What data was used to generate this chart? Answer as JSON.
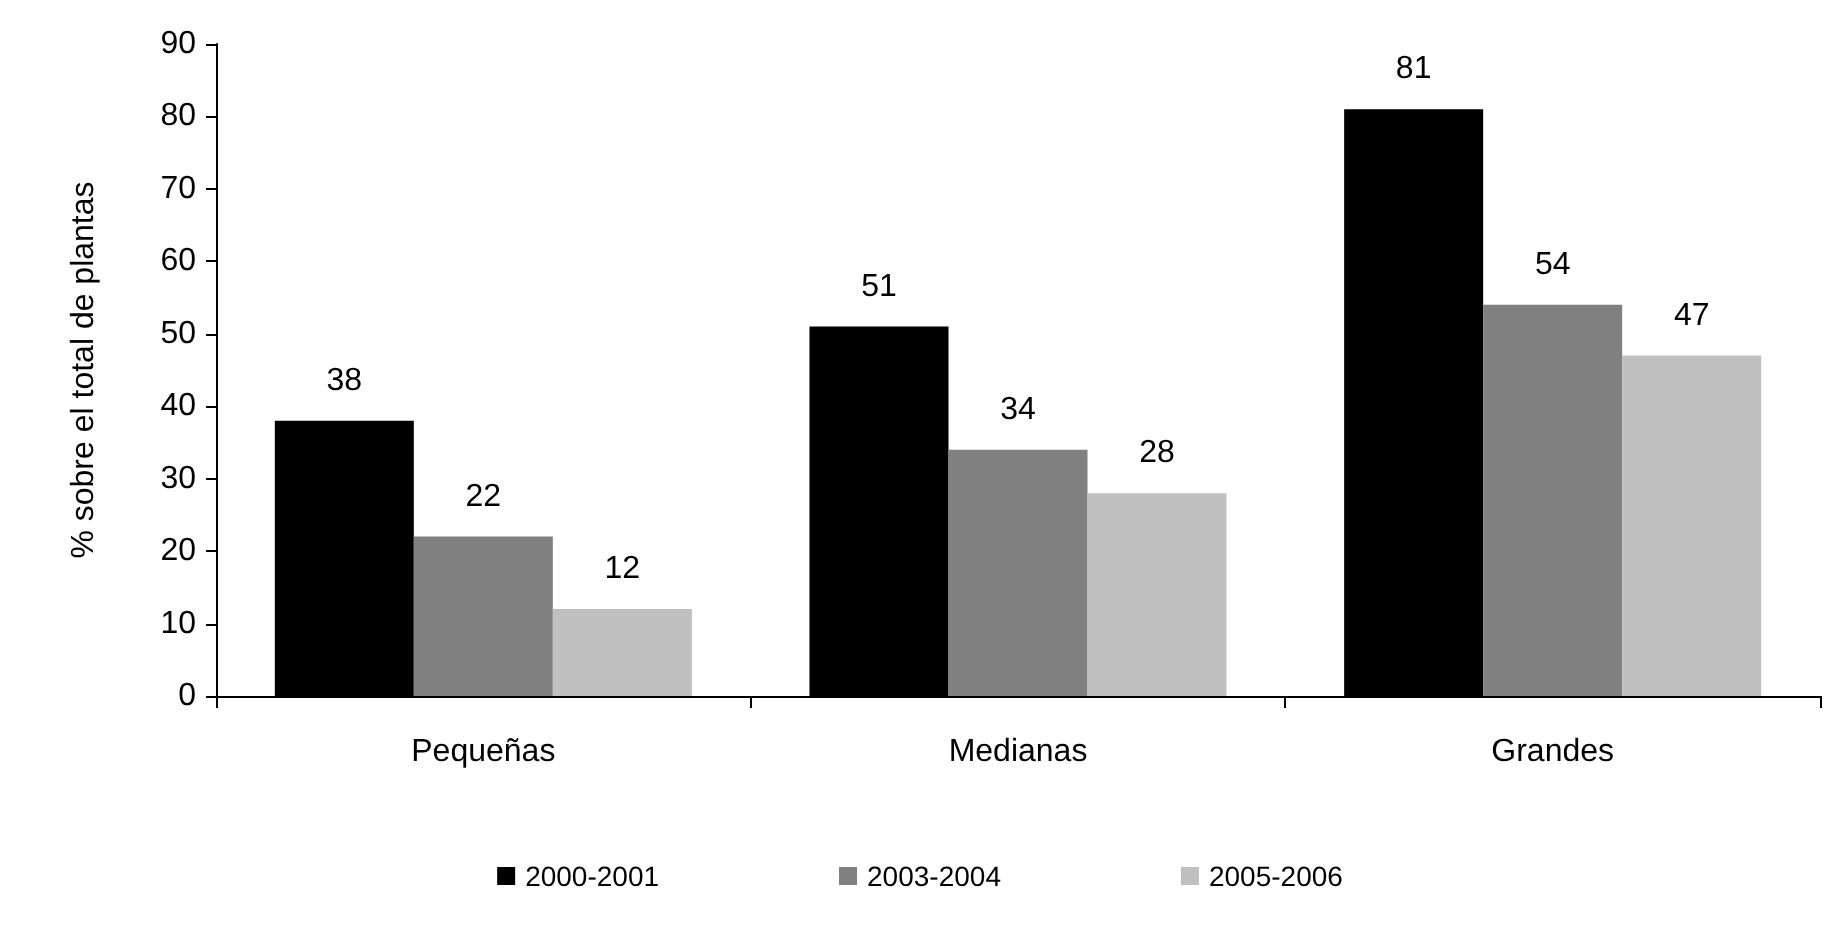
{
  "chart_data": {
    "type": "bar",
    "ylabel": "% sobre el total de plantas",
    "categories": [
      "Pequeñas",
      "Medianas",
      "Grandes"
    ],
    "series": [
      {
        "name": "2000-2001",
        "color": "#000000",
        "values": [
          38,
          51,
          81
        ]
      },
      {
        "name": "2003-2004",
        "color": "#808080",
        "values": [
          22,
          34,
          54
        ]
      },
      {
        "name": "2005-2006",
        "color": "#c0c0c0",
        "values": [
          12,
          28,
          47
        ]
      }
    ],
    "ylim": [
      0,
      90
    ],
    "yticks": [
      0,
      10,
      20,
      30,
      40,
      50,
      60,
      70,
      80,
      90
    ],
    "data_labels": true,
    "legend": "bottom",
    "grid": false
  }
}
